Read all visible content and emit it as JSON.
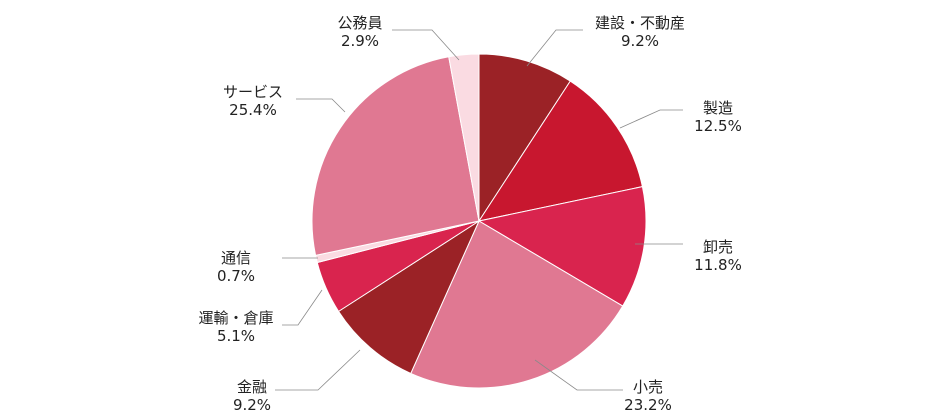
{
  "chart_data": {
    "type": "pie",
    "start": "top",
    "direction": "clockwise",
    "slices": [
      {
        "label": "建設・不動産",
        "value": 9.2,
        "value_label": "9.2%",
        "color": "#9b2226"
      },
      {
        "label": "製造",
        "value": 12.5,
        "value_label": "12.5%",
        "color": "#c8172f"
      },
      {
        "label": "卸売",
        "value": 11.8,
        "value_label": "11.8%",
        "color": "#d9244e"
      },
      {
        "label": "小売",
        "value": 23.2,
        "value_label": "23.2%",
        "color": "#e07892"
      },
      {
        "label": "金融",
        "value": 9.2,
        "value_label": "9.2%",
        "color": "#9b2226"
      },
      {
        "label": "運輸・倉庫",
        "value": 5.1,
        "value_label": "5.1%",
        "color": "#d9244e"
      },
      {
        "label": "通信",
        "value": 0.7,
        "value_label": "0.7%",
        "color": "#fadbe2"
      },
      {
        "label": "サービス",
        "value": 25.4,
        "value_label": "25.4%",
        "color": "#e07892"
      },
      {
        "label": "公務員",
        "value": 2.9,
        "value_label": "2.9%",
        "color": "#fadbe2"
      }
    ]
  }
}
